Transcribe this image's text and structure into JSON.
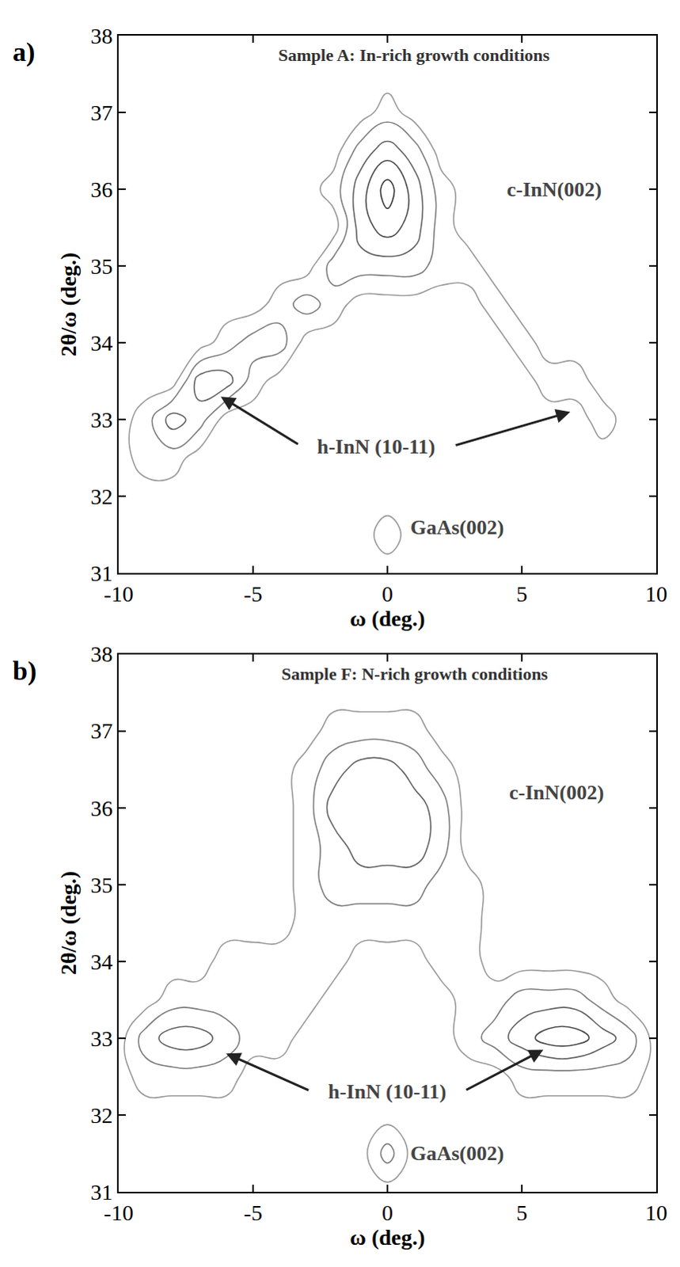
{
  "chart_data": [
    {
      "type": "contour",
      "panel_label": "a)",
      "title": "Sample A: In-rich growth conditions",
      "x_label": "ω (deg.)",
      "y_label": "2θ/ω (deg.)",
      "xlim": [
        -10,
        10
      ],
      "ylim": [
        31,
        38
      ],
      "xticks": [
        -10,
        -5,
        0,
        5,
        10
      ],
      "yticks": [
        31,
        32,
        33,
        34,
        35,
        36,
        37,
        38
      ],
      "grid": false,
      "color": "#555555",
      "x": [
        -10,
        -9,
        -8,
        -7,
        -6,
        -5,
        -4,
        -3,
        -2,
        -1,
        0,
        1,
        2,
        3,
        4,
        5,
        6,
        7,
        8,
        9,
        10
      ],
      "y": [
        31,
        31.5,
        32,
        32.5,
        33,
        33.5,
        34,
        34.5,
        35,
        35.5,
        36,
        36.5,
        37,
        37.5,
        38
      ],
      "z": [
        [
          0,
          0,
          0,
          0,
          0,
          0,
          0,
          0,
          0,
          0,
          0,
          0,
          0,
          0,
          0,
          0,
          0,
          0,
          0,
          0,
          0
        ],
        [
          0,
          0,
          0,
          0,
          0,
          0,
          0,
          0,
          0,
          0,
          1,
          0,
          0,
          0,
          0,
          0,
          0,
          0,
          0,
          0,
          0
        ],
        [
          0,
          0,
          0,
          0,
          0,
          0,
          0,
          0,
          0,
          0,
          0,
          0,
          0,
          0,
          0,
          0,
          0,
          0,
          0,
          0,
          0
        ],
        [
          0,
          1,
          1,
          0,
          0,
          0,
          0,
          0,
          0,
          0,
          0,
          0,
          0,
          0,
          0,
          0,
          0,
          0,
          0,
          0,
          0
        ],
        [
          0,
          1,
          3,
          2,
          0,
          0,
          0,
          0,
          0,
          0,
          0,
          0,
          0,
          0,
          0,
          0,
          0,
          0,
          1,
          0,
          0
        ],
        [
          0,
          0,
          0,
          3,
          3,
          1,
          0,
          0,
          0,
          0,
          0,
          0,
          0,
          0,
          0,
          0,
          1,
          1,
          0,
          0,
          0
        ],
        [
          0,
          0,
          0,
          0,
          1,
          2,
          2,
          0,
          0,
          0,
          0,
          0,
          0,
          0,
          0,
          1,
          0,
          0,
          0,
          0,
          0
        ],
        [
          0,
          0,
          0,
          0,
          0,
          0,
          1,
          2,
          1,
          0,
          0,
          0,
          0,
          0,
          1,
          0,
          0,
          0,
          0,
          0,
          0
        ],
        [
          0,
          0,
          0,
          0,
          0,
          0,
          0,
          0,
          2,
          2,
          2,
          2,
          1,
          1,
          0,
          0,
          0,
          0,
          0,
          0,
          0
        ],
        [
          0,
          0,
          0,
          0,
          0,
          0,
          0,
          0,
          0,
          3,
          4,
          3,
          1,
          0,
          0,
          0,
          0,
          0,
          0,
          0,
          0
        ],
        [
          0,
          0,
          0,
          0,
          0,
          0,
          0,
          0,
          1,
          3,
          5,
          3,
          1,
          0,
          0,
          0,
          0,
          0,
          0,
          0,
          0
        ],
        [
          0,
          0,
          0,
          0,
          0,
          0,
          0,
          0,
          0,
          2,
          3,
          2,
          0,
          0,
          0,
          0,
          0,
          0,
          0,
          0,
          0
        ],
        [
          0,
          0,
          0,
          0,
          0,
          0,
          0,
          0,
          0,
          0,
          1,
          0,
          0,
          0,
          0,
          0,
          0,
          0,
          0,
          0,
          0
        ],
        [
          0,
          0,
          0,
          0,
          0,
          0,
          0,
          0,
          0,
          0,
          0,
          0,
          0,
          0,
          0,
          0,
          0,
          0,
          0,
          0,
          0
        ],
        [
          0,
          0,
          0,
          0,
          0,
          0,
          0,
          0,
          0,
          0,
          0,
          0,
          0,
          0,
          0,
          0,
          0,
          0,
          0,
          0,
          0
        ]
      ],
      "annotations": [
        {
          "text": "c-InN(002)",
          "x": 6.2,
          "y": 36.0
        },
        {
          "text": "h-InN (10-11)",
          "x": -0.4,
          "y": 32.65,
          "arrows": [
            [
              -6.2,
              33.3
            ],
            [
              6.8,
              33.1
            ]
          ]
        },
        {
          "text": "GaAs(002)",
          "x": 0.8,
          "y": 31.6
        }
      ]
    },
    {
      "type": "contour",
      "panel_label": "b)",
      "title": "Sample F: N-rich growth conditions",
      "x_label": "ω (deg.)",
      "y_label": "2θ/ω (deg.)",
      "xlim": [
        -10,
        10
      ],
      "ylim": [
        31,
        38
      ],
      "xticks": [
        -10,
        -5,
        0,
        5,
        10
      ],
      "yticks": [
        31,
        32,
        33,
        34,
        35,
        36,
        37,
        38
      ],
      "grid": false,
      "color": "#555555",
      "x": [
        -10,
        -9,
        -8,
        -7,
        -6,
        -5,
        -4,
        -3,
        -2,
        -1,
        0,
        1,
        2,
        3,
        4,
        5,
        6,
        7,
        8,
        9,
        10
      ],
      "y": [
        31,
        31.5,
        32,
        32.5,
        33,
        33.5,
        34,
        34.5,
        35,
        35.5,
        36,
        36.5,
        37,
        37.5,
        38
      ],
      "z": [
        [
          0,
          0,
          0,
          0,
          0,
          0,
          0,
          0,
          0,
          0,
          0,
          0,
          0,
          0,
          0,
          0,
          0,
          0,
          0,
          0,
          0
        ],
        [
          0,
          0,
          0,
          0,
          0,
          0,
          0,
          0,
          0,
          0,
          2,
          0,
          0,
          0,
          0,
          0,
          0,
          0,
          0,
          0,
          0
        ],
        [
          0,
          0,
          0,
          0,
          0,
          0,
          0,
          0,
          0,
          0,
          0,
          0,
          0,
          0,
          0,
          0,
          0,
          0,
          0,
          0,
          0
        ],
        [
          0,
          1,
          1,
          1,
          1,
          0,
          0,
          0,
          0,
          0,
          0,
          0,
          0,
          0,
          0,
          1,
          1,
          1,
          1,
          1,
          0
        ],
        [
          0,
          2,
          3,
          3,
          2,
          1,
          1,
          0,
          0,
          0,
          0,
          0,
          0,
          1,
          2,
          3,
          4,
          4,
          3,
          2,
          0
        ],
        [
          0,
          0,
          1,
          1,
          1,
          1,
          1,
          1,
          0,
          0,
          0,
          0,
          0,
          1,
          1,
          2,
          2,
          2,
          1,
          0,
          0
        ],
        [
          0,
          0,
          0,
          0,
          1,
          1,
          1,
          1,
          1,
          0,
          0,
          0,
          1,
          1,
          0,
          0,
          0,
          0,
          0,
          0,
          0
        ],
        [
          0,
          0,
          0,
          0,
          0,
          0,
          0,
          1,
          1,
          1,
          1,
          1,
          1,
          1,
          0,
          0,
          0,
          0,
          0,
          0,
          0
        ],
        [
          0,
          0,
          0,
          0,
          0,
          0,
          0,
          1,
          2,
          2,
          2,
          2,
          1,
          1,
          0,
          0,
          0,
          0,
          0,
          0,
          0
        ],
        [
          0,
          0,
          0,
          0,
          0,
          0,
          0,
          1,
          2,
          3,
          3,
          3,
          2,
          0,
          0,
          0,
          0,
          0,
          0,
          0,
          0
        ],
        [
          0,
          0,
          0,
          0,
          0,
          0,
          0,
          1,
          3,
          3,
          3,
          3,
          2,
          0,
          0,
          0,
          0,
          0,
          0,
          0,
          0
        ],
        [
          0,
          0,
          0,
          0,
          0,
          0,
          0,
          1,
          2,
          3,
          3,
          2,
          1,
          0,
          0,
          0,
          0,
          0,
          0,
          0,
          0
        ],
        [
          0,
          0,
          0,
          0,
          0,
          0,
          0,
          0,
          1,
          1,
          1,
          1,
          0,
          0,
          0,
          0,
          0,
          0,
          0,
          0,
          0
        ],
        [
          0,
          0,
          0,
          0,
          0,
          0,
          0,
          0,
          0,
          0,
          0,
          0,
          0,
          0,
          0,
          0,
          0,
          0,
          0,
          0,
          0
        ],
        [
          0,
          0,
          0,
          0,
          0,
          0,
          0,
          0,
          0,
          0,
          0,
          0,
          0,
          0,
          0,
          0,
          0,
          0,
          0,
          0,
          0
        ]
      ],
      "annotations": [
        {
          "text": "c-InN(002)",
          "x": 6.3,
          "y": 36.2
        },
        {
          "text": "h-InN (10-11)",
          "x": 0.0,
          "y": 32.3,
          "arrows": [
            [
              -6.0,
              32.8
            ],
            [
              5.8,
              32.85
            ]
          ]
        },
        {
          "text": "GaAs(002)",
          "x": 0.8,
          "y": 31.5
        }
      ]
    }
  ]
}
